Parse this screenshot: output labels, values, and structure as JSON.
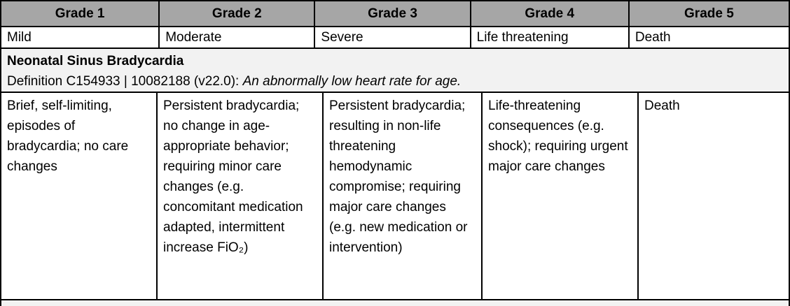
{
  "table": {
    "header": {
      "grades": [
        "Grade 1",
        "Grade 2",
        "Grade 3",
        "Grade 4",
        "Grade 5"
      ],
      "severities": [
        "Mild",
        "Moderate",
        "Severe",
        "Life threatening",
        "Death"
      ]
    },
    "term": {
      "name": "Neonatal Sinus Bradycardia",
      "definition_label": "Definition C154933 | 10082188 (v22.0): ",
      "definition_text": "An abnormally low heart rate for age."
    },
    "grade_descriptions": [
      "Brief, self-limiting, episodes of bradycardia; no care changes",
      "Persistent bradycardia; no change in age-appropriate behavior; requiring minor care changes (e.g. concomitant medication adapted, intermittent increase FiO₂)",
      "Persistent bradycardia; resulting in non-life threatening hemodynamic compromise; requiring major care changes (e.g. new medication or intervention)",
      "Life-threatening consequences (e.g. shock); requiring urgent major care changes",
      "Death"
    ]
  },
  "colors": {
    "header_bg": "#a6a6a6",
    "band_bg": "#f2f2f2",
    "border": "#000000",
    "text": "#000000"
  }
}
